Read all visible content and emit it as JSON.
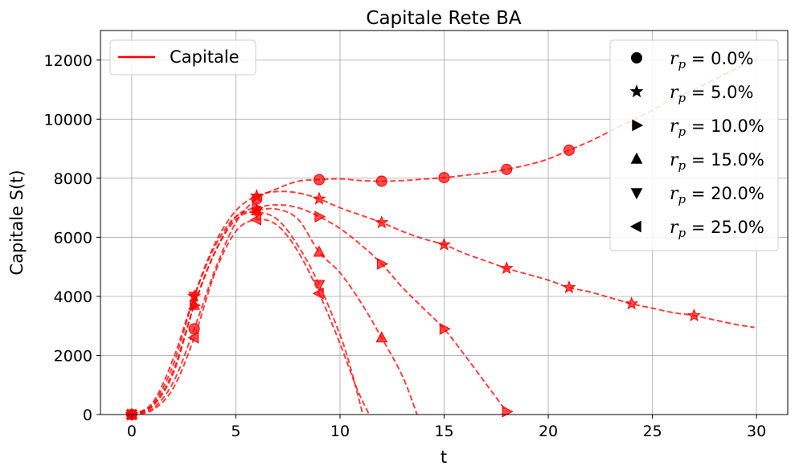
{
  "chart_data": {
    "type": "line",
    "title": "Capitale Rete BA",
    "xlabel": "t",
    "ylabel": "Capitale S(t)",
    "xlim": [
      -1.5,
      31.5
    ],
    "ylim": [
      0,
      13000
    ],
    "xticks": [
      0,
      5,
      10,
      15,
      20,
      25,
      30
    ],
    "yticks": [
      0,
      2000,
      4000,
      6000,
      8000,
      10000,
      12000
    ],
    "grid": true,
    "line_color": "#ff0000",
    "legend_line": {
      "label": "Capitale",
      "placement": "top-left"
    },
    "legend_markers": {
      "placement": "top-right",
      "entries": [
        {
          "marker": "circle",
          "symbol": "r",
          "sub": "p",
          "text": " = 0.0%"
        },
        {
          "marker": "star",
          "symbol": "r",
          "sub": "p",
          "text": " = 5.0%"
        },
        {
          "marker": "triangle-right",
          "symbol": "r",
          "sub": "p",
          "text": " = 10.0%"
        },
        {
          "marker": "triangle-up",
          "symbol": "r",
          "sub": "p",
          "text": " = 15.0%"
        },
        {
          "marker": "triangle-down",
          "symbol": "r",
          "sub": "p",
          "text": " = 20.0%"
        },
        {
          "marker": "triangle-left",
          "symbol": "r",
          "sub": "p",
          "text": " = 25.0%"
        }
      ]
    },
    "series": [
      {
        "rp": 0.0,
        "marker": "circle",
        "x": [
          0,
          1,
          2,
          3,
          4,
          5,
          6,
          7,
          8,
          9,
          10,
          11,
          12,
          13,
          14,
          15,
          16,
          17,
          18,
          19,
          20,
          21,
          22,
          23,
          24,
          25,
          26,
          27,
          28,
          29,
          30
        ],
        "y": [
          0,
          200,
          1100,
          2900,
          4900,
          6500,
          7300,
          7650,
          7900,
          7950,
          7980,
          7920,
          7900,
          7920,
          7970,
          8020,
          8100,
          8180,
          8300,
          8450,
          8650,
          8950,
          9250,
          9600,
          9950,
          10300,
          10700,
          11000,
          11350,
          11700,
          12000
        ],
        "markers_x": [
          0,
          3,
          6,
          9,
          12,
          15,
          18,
          21
        ]
      },
      {
        "rp": 5.0,
        "marker": "star",
        "x": [
          0,
          1,
          2,
          3,
          4,
          5,
          6,
          7,
          8,
          9,
          10,
          11,
          12,
          13,
          14,
          15,
          16,
          17,
          18,
          19,
          20,
          21,
          22,
          23,
          24,
          25,
          26,
          27,
          28,
          29,
          29.9
        ],
        "y": [
          0,
          350,
          1700,
          4000,
          5800,
          6900,
          7400,
          7550,
          7500,
          7300,
          7000,
          6750,
          6500,
          6200,
          5950,
          5750,
          5450,
          5200,
          4950,
          4750,
          4550,
          4300,
          4150,
          3950,
          3750,
          3600,
          3450,
          3350,
          3200,
          3050,
          2950
        ],
        "markers_x": [
          0,
          3,
          6,
          9,
          12,
          15,
          18,
          21,
          24,
          27
        ]
      },
      {
        "rp": 10.0,
        "marker": "triangle-right",
        "x": [
          0,
          1,
          2,
          3,
          4,
          5,
          6,
          7,
          8,
          9,
          10,
          11,
          12,
          13,
          14,
          15,
          16,
          17,
          18
        ],
        "y": [
          0,
          300,
          1500,
          3700,
          5500,
          6700,
          7000,
          7100,
          7000,
          6700,
          6300,
          5750,
          5100,
          4300,
          3600,
          2900,
          2000,
          1050,
          100
        ],
        "markers_x": [
          0,
          3,
          6,
          9,
          12,
          15,
          18
        ]
      },
      {
        "rp": 15.0,
        "marker": "triangle-up",
        "x": [
          0,
          1,
          2,
          3,
          4,
          5,
          6,
          7,
          8,
          9,
          10,
          11,
          12,
          13,
          13.7
        ],
        "y": [
          0,
          280,
          1400,
          3700,
          5500,
          6600,
          6900,
          6950,
          6600,
          5500,
          4800,
          3800,
          2600,
          1300,
          0
        ],
        "markers_x": [
          0,
          3,
          6,
          9,
          12
        ]
      },
      {
        "rp": 20.0,
        "marker": "triangle-down",
        "x": [
          0,
          1,
          2,
          3,
          4,
          5,
          6,
          7,
          8,
          9,
          10,
          10.5,
          11.1
        ],
        "y": [
          0,
          400,
          1900,
          4000,
          5700,
          6700,
          6850,
          6600,
          5700,
          4400,
          2700,
          1600,
          0
        ],
        "markers_x": [
          0,
          3,
          6,
          9
        ]
      },
      {
        "rp": 25.0,
        "marker": "triangle-left",
        "x": [
          0,
          1,
          2,
          3,
          4,
          5,
          6,
          7,
          8,
          9,
          10,
          10.8,
          11.4
        ],
        "y": [
          0,
          150,
          900,
          2600,
          4800,
          6200,
          6600,
          6400,
          5500,
          4100,
          2400,
          900,
          0
        ],
        "markers_x": [
          0,
          3,
          6,
          9
        ]
      }
    ]
  }
}
